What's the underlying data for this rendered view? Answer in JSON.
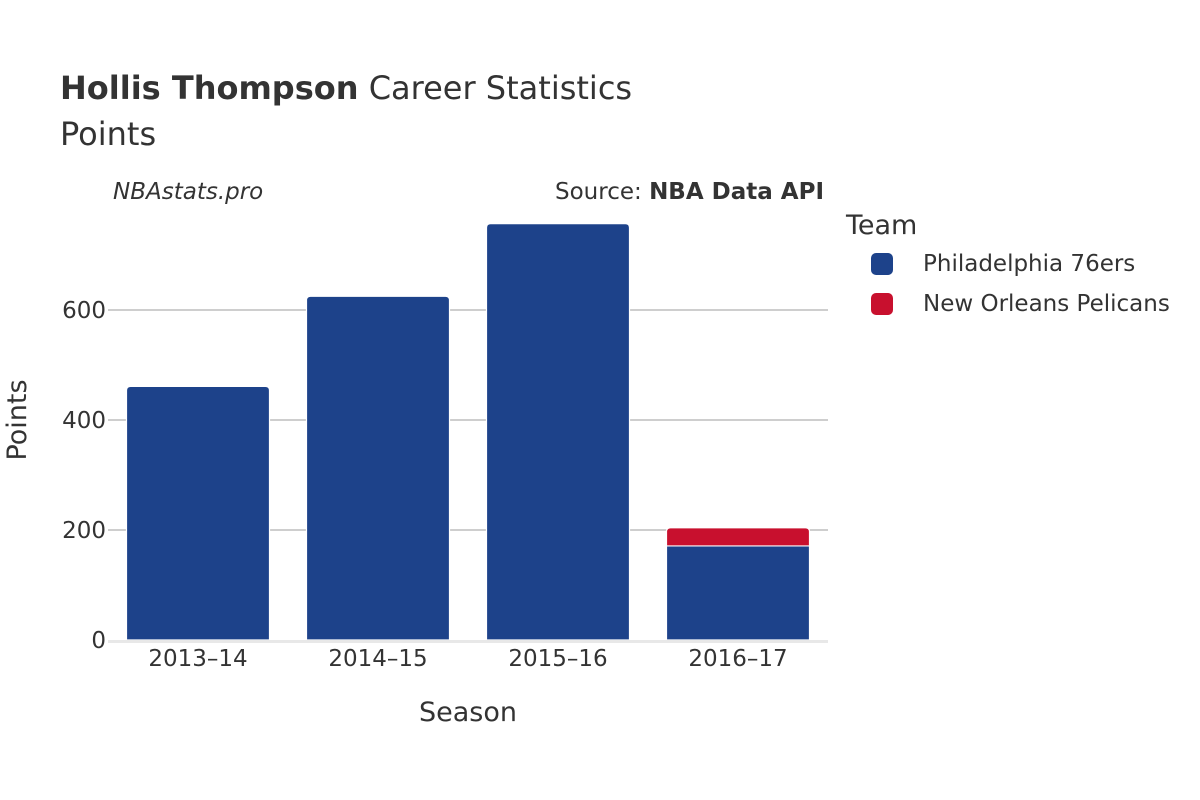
{
  "header": {
    "player": "Hollis Thompson",
    "title_rest": " Career Statistics",
    "subtitle": "Points"
  },
  "watermark": "NBAstats.pro",
  "source": {
    "prefix": "Source: ",
    "name": "NBA Data API"
  },
  "legend": {
    "title": "Team"
  },
  "chart_data": {
    "type": "bar",
    "stacked": true,
    "title": "Hollis Thompson Career Statistics",
    "subtitle": "Points",
    "xlabel": "Season",
    "ylabel": "Points",
    "categories": [
      "2013–14",
      "2014–15",
      "2015–16",
      "2016–17"
    ],
    "ylim": [
      0,
      760
    ],
    "yticks": [
      0,
      200,
      400,
      600
    ],
    "grid": true,
    "legend_position": "right",
    "series": [
      {
        "name": "Philadelphia 76ers",
        "color": "#1d428a",
        "values": [
          461,
          625,
          757,
          171
        ]
      },
      {
        "name": "New Orleans Pelicans",
        "color": "#c8102e",
        "values": [
          0,
          0,
          0,
          33
        ]
      }
    ]
  }
}
